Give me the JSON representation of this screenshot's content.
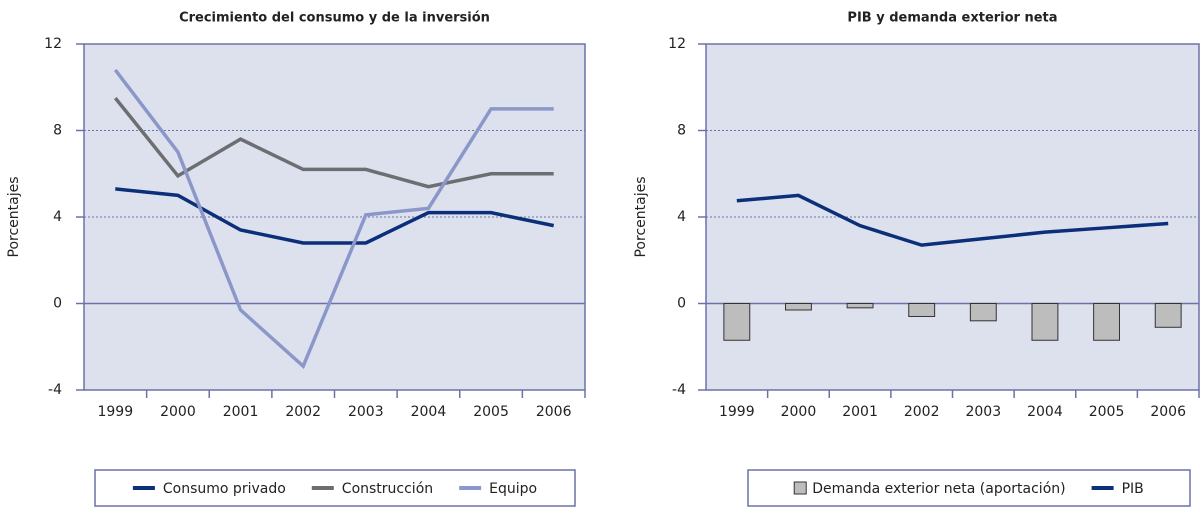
{
  "chart_data": [
    {
      "type": "line",
      "title": "Crecimiento del consumo y de la inversión",
      "y_label": "Porcentajes",
      "categories": [
        "1999",
        "2000",
        "2001",
        "2002",
        "2003",
        "2004",
        "2005",
        "2006"
      ],
      "series": [
        {
          "name": "Consumo privado",
          "color": "#0c2f7a",
          "values": [
            5.3,
            5.0,
            3.4,
            2.8,
            2.8,
            4.2,
            4.2,
            3.6
          ]
        },
        {
          "name": "Construcción",
          "color": "#6d6e71",
          "values": [
            9.5,
            5.9,
            7.6,
            6.2,
            6.2,
            5.4,
            6.0,
            6.0
          ]
        },
        {
          "name": "Equipo",
          "color": "#8c97c9",
          "values": [
            10.8,
            7.0,
            -0.3,
            -2.9,
            4.1,
            4.4,
            9.0,
            9.0
          ]
        }
      ],
      "ylim": [
        -4,
        12
      ],
      "yticks": [
        -4,
        0,
        4,
        8,
        12
      ],
      "grid": true
    },
    {
      "type": "combo",
      "title": "PIB y demanda exterior neta",
      "y_label": "Porcentajes",
      "categories": [
        "1999",
        "2000",
        "2001",
        "2002",
        "2003",
        "2004",
        "2005",
        "2006"
      ],
      "series": [
        {
          "name": "Demanda exterior neta (aportación)",
          "type": "bar",
          "color": "#bdbdbd",
          "values": [
            -1.7,
            -0.3,
            -0.2,
            -0.6,
            -0.8,
            -1.7,
            -1.7,
            -1.1
          ]
        },
        {
          "name": "PIB",
          "type": "line",
          "color": "#0c2f7a",
          "values": [
            4.75,
            5.0,
            3.6,
            2.7,
            3.0,
            3.3,
            3.5,
            3.7
          ]
        }
      ],
      "ylim": [
        -4,
        12
      ],
      "yticks": [
        -4,
        0,
        4,
        8,
        12
      ],
      "grid": true
    }
  ]
}
